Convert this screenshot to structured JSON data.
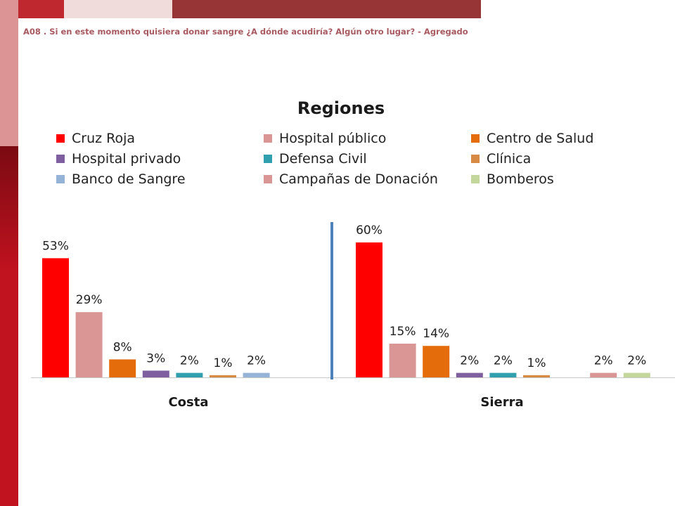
{
  "question_text": "A08 . Si en este momento quisiera donar sangre ¿A dónde acudiría? Algún otro lugar? - Agregado",
  "chart_data": {
    "type": "bar",
    "title": "Regiones",
    "legend_position": "top",
    "grid": false,
    "value_suffix": "%",
    "ylim": [
      0,
      65
    ],
    "series": [
      {
        "name": "Cruz Roja",
        "color": "#ff0000"
      },
      {
        "name": "Hospital público",
        "color": "#d99694"
      },
      {
        "name": "Centro de Salud",
        "color": "#e46c0a"
      },
      {
        "name": "Hospital privado",
        "color": "#7f5f9f"
      },
      {
        "name": "Defensa Civil",
        "color": "#31a0ae"
      },
      {
        "name": "Clínica",
        "color": "#d68a44"
      },
      {
        "name": "Banco de Sangre",
        "color": "#95b3d7"
      },
      {
        "name": "Campañas de Donación",
        "color": "#d99694"
      },
      {
        "name": "Bomberos",
        "color": "#c3d69b"
      }
    ],
    "groups": [
      {
        "name": "Costa",
        "values": [
          53,
          29,
          8,
          3,
          2,
          1,
          2,
          null,
          null
        ]
      },
      {
        "name": "Sierra",
        "values": [
          60,
          15,
          14,
          2,
          2,
          1,
          null,
          2,
          2
        ]
      }
    ]
  }
}
